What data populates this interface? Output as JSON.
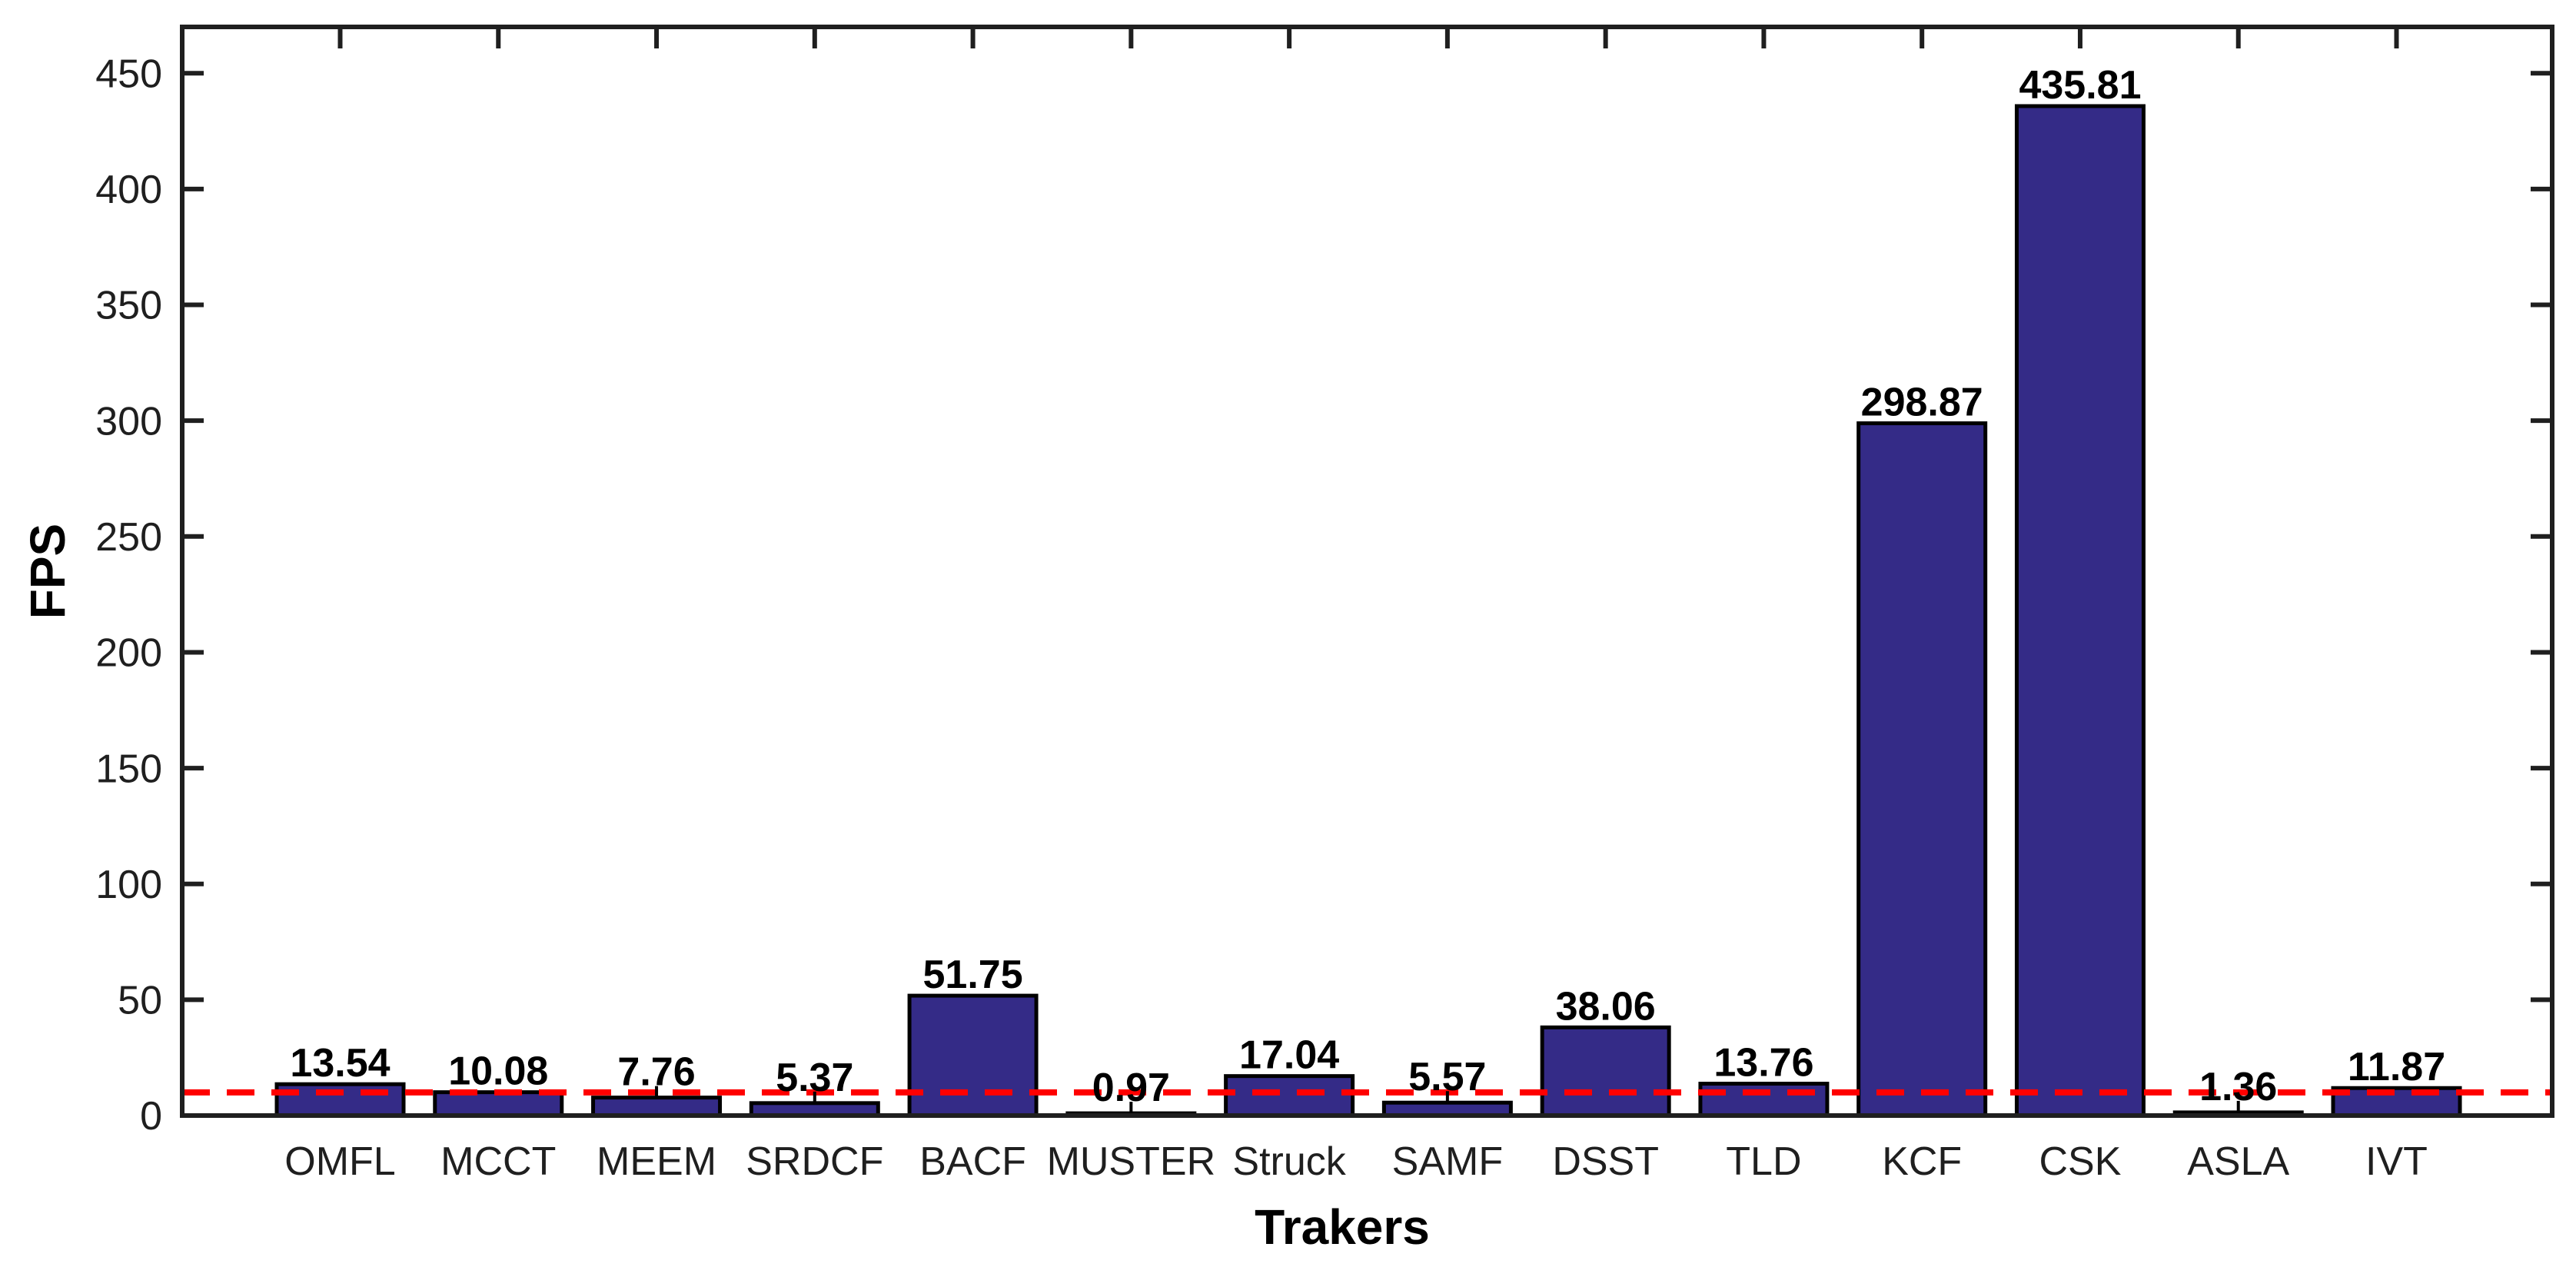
{
  "figure": {
    "background_color": "#FFFFFF"
  },
  "chart_data": {
    "type": "bar",
    "title": "",
    "xlabel": "Trakers",
    "ylabel": "FPS",
    "categories": [
      "OMFL",
      "MCCT",
      "MEEM",
      "SRDCF",
      "BACF",
      "MUSTER",
      "Struck",
      "SAMF",
      "DSST",
      "TLD",
      "KCF",
      "CSK",
      "ASLA",
      "IVT"
    ],
    "values": [
      13.54,
      10.08,
      7.76,
      5.37,
      51.75,
      0.97,
      17.04,
      5.57,
      38.06,
      13.76,
      298.87,
      435.81,
      1.36,
      11.87
    ],
    "value_labels": [
      "13.54",
      "10.08",
      "7.76",
      "5.37",
      "51.75",
      "0.97",
      "17.04",
      "5.57",
      "38.06",
      "13.76",
      "298.87",
      "435.81",
      "1.36",
      "11.87"
    ],
    "yticks": [
      0,
      50,
      100,
      150,
      200,
      250,
      300,
      350,
      400,
      450
    ],
    "ylim": [
      0,
      470
    ],
    "grid": false,
    "legend": null,
    "box": true,
    "tick_direction": "in",
    "bar_fill_color": "#342B87",
    "bar_edge_color": "#000000",
    "axis_color": "#1F1F1F",
    "tick_label_color": "#1F1F1F",
    "value_label_color": "#000000",
    "reference_line": {
      "value": 10,
      "color": "#FF0000",
      "style": "dashed"
    }
  }
}
